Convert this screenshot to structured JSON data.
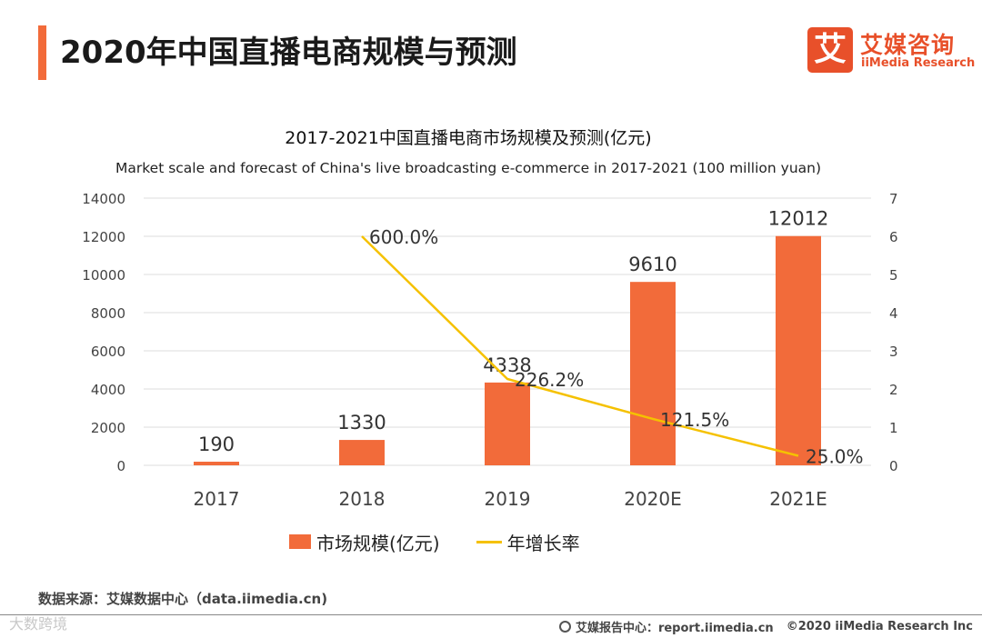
{
  "page": {
    "title": "2020年中国直播电商规模与预测",
    "logo_cn": "艾媒咨询",
    "logo_en": "iiMedia Research",
    "logo_glyph": "艾",
    "accent_color": "#f26b3a"
  },
  "chart_data": {
    "type": "bar",
    "title": "2017-2021中国直播电商市场规模及预测(亿元)",
    "subtitle": "Market scale and forecast of China's live broadcasting e-commerce in 2017-2021 (100 million yuan)",
    "categories": [
      "2017",
      "2018",
      "2019",
      "2020E",
      "2021E"
    ],
    "ylim": [
      0,
      14000
    ],
    "yticks": [
      0,
      2000,
      4000,
      6000,
      8000,
      10000,
      12000,
      14000
    ],
    "y2lim": [
      0,
      7
    ],
    "y2ticks": [
      0,
      1,
      2,
      3,
      4,
      5,
      6,
      7
    ],
    "grid": true,
    "legend_position": "bottom",
    "series": [
      {
        "name": "市场规模(亿元)",
        "type": "bar",
        "axis": "left",
        "color": "#f26b3a",
        "values": [
          190,
          1330,
          4338,
          9610,
          12012
        ],
        "labels": [
          "190",
          "1330",
          "4338",
          "9610",
          "12012"
        ]
      },
      {
        "name": "年增长率",
        "type": "line",
        "axis": "right",
        "color": "#f5c100",
        "values": [
          null,
          6.0,
          2.262,
          1.215,
          0.25
        ],
        "labels": [
          "",
          "600.0%",
          "226.2%",
          "121.5%",
          "25.0%"
        ]
      }
    ]
  },
  "footer": {
    "source": "数据来源：艾媒数据中心（data.iimedia.cn)",
    "report": "艾媒报告中心：report.iimedia.cn",
    "copyright": "©2020  iiMedia Research  Inc",
    "watermark": "大数跨境"
  }
}
